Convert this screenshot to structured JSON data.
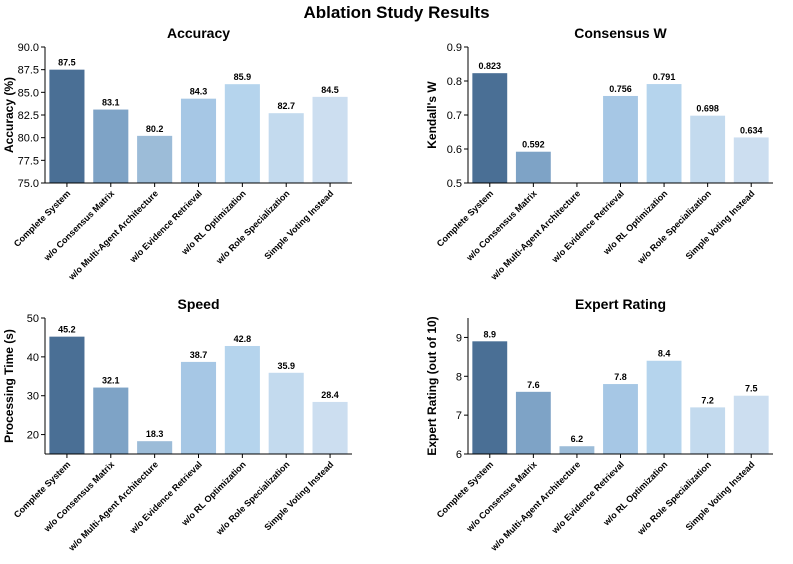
{
  "suptitle": "Ablation Study Results",
  "categories": [
    "Complete System",
    "w/o Consensus Matrix",
    "w/o Multi-Agent Architecture",
    "w/o Evidence Retrieval",
    "w/o RL Optimization",
    "w/o Role Specialization",
    "Simple Voting Instead"
  ],
  "bar_colors": [
    "#4a6f95",
    "#7ea3c6",
    "#9cbcd8",
    "#a6c7e5",
    "#b5d4ed",
    "#c3daee",
    "#ccdef0"
  ],
  "chart_data": [
    {
      "type": "bar",
      "title": "Accuracy",
      "xlabel": "",
      "ylabel": "Accuracy (%)",
      "categories": [
        "Complete System",
        "w/o Consensus Matrix",
        "w/o Multi-Agent Architecture",
        "w/o Evidence Retrieval",
        "w/o RL Optimization",
        "w/o Role Specialization",
        "Simple Voting Instead"
      ],
      "values": [
        87.5,
        83.1,
        80.2,
        84.3,
        85.9,
        82.7,
        84.5
      ],
      "labels": [
        "87.5",
        "83.1",
        "80.2",
        "84.3",
        "85.9",
        "82.7",
        "84.5"
      ],
      "ylim": [
        75.0,
        90.0
      ],
      "yticks": [
        75.0,
        77.5,
        80.0,
        82.5,
        85.0,
        87.5,
        90.0
      ],
      "ytick_labels": [
        "75.0",
        "77.5",
        "80.0",
        "82.5",
        "85.0",
        "87.5",
        "90.0"
      ]
    },
    {
      "type": "bar",
      "title": "Consensus W",
      "xlabel": "",
      "ylabel": "Kendall's W",
      "categories": [
        "Complete System",
        "w/o Consensus Matrix",
        "w/o Multi-Agent Architecture",
        "w/o Evidence Retrieval",
        "w/o RL Optimization",
        "w/o Role Specialization",
        "Simple Voting Instead"
      ],
      "values": [
        0.823,
        0.592,
        0.5,
        0.756,
        0.791,
        0.698,
        0.634
      ],
      "labels": [
        "0.823",
        "0.592",
        "",
        "0.756",
        "0.791",
        "0.698",
        "0.634"
      ],
      "ylim": [
        0.5,
        0.9
      ],
      "yticks": [
        0.5,
        0.6,
        0.7,
        0.8,
        0.9
      ],
      "ytick_labels": [
        "0.5",
        "0.6",
        "0.7",
        "0.8",
        "0.9"
      ]
    },
    {
      "type": "bar",
      "title": "Speed",
      "xlabel": "",
      "ylabel": "Processing Time (s)",
      "categories": [
        "Complete System",
        "w/o Consensus Matrix",
        "w/o Multi-Agent Architecture",
        "w/o Evidence Retrieval",
        "w/o RL Optimization",
        "w/o Role Specialization",
        "Simple Voting Instead"
      ],
      "values": [
        45.2,
        32.1,
        18.3,
        38.7,
        42.8,
        35.9,
        28.4
      ],
      "labels": [
        "45.2",
        "32.1",
        "18.3",
        "38.7",
        "42.8",
        "35.9",
        "28.4"
      ],
      "ylim": [
        15,
        50
      ],
      "yticks": [
        20,
        30,
        40,
        50
      ],
      "ytick_labels": [
        "20",
        "30",
        "40",
        "50"
      ]
    },
    {
      "type": "bar",
      "title": "Expert Rating",
      "xlabel": "",
      "ylabel": "Expert Rating (out of 10)",
      "categories": [
        "Complete System",
        "w/o Consensus Matrix",
        "w/o Multi-Agent Architecture",
        "w/o Evidence Retrieval",
        "w/o RL Optimization",
        "w/o Role Specialization",
        "Simple Voting Instead"
      ],
      "values": [
        8.9,
        7.6,
        6.2,
        7.8,
        8.4,
        7.2,
        7.5
      ],
      "labels": [
        "8.9",
        "7.6",
        "6.2",
        "7.8",
        "8.4",
        "7.2",
        "7.5"
      ],
      "ylim": [
        6.0,
        9.5
      ],
      "yticks": [
        6,
        7,
        8,
        9
      ],
      "ytick_labels": [
        "6",
        "7",
        "8",
        "9"
      ]
    }
  ]
}
